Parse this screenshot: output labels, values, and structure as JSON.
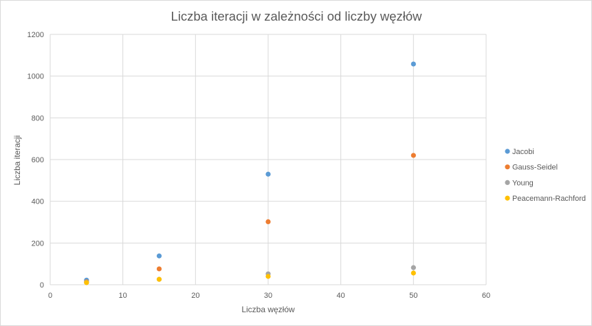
{
  "chart_data": {
    "type": "scatter",
    "title": "Liczba iteracji w zależności od liczby węzłów",
    "xlabel": "Liczba węzłów",
    "ylabel": "Liczba iteracji",
    "xlim": [
      0,
      60
    ],
    "ylim": [
      0,
      1200
    ],
    "xticks": [
      0,
      10,
      20,
      30,
      40,
      50,
      60
    ],
    "yticks": [
      0,
      200,
      400,
      600,
      800,
      1000,
      1200
    ],
    "grid": true,
    "legend_position": "right",
    "series": [
      {
        "name": "Jacobi",
        "color": "#5b9bd5",
        "points": [
          [
            5,
            22
          ],
          [
            15,
            138
          ],
          [
            30,
            530
          ],
          [
            50,
            1058
          ]
        ]
      },
      {
        "name": "Gauss-Seidel",
        "color": "#ed7d31",
        "points": [
          [
            5,
            14
          ],
          [
            15,
            76
          ],
          [
            30,
            302
          ],
          [
            50,
            620
          ]
        ]
      },
      {
        "name": "Young",
        "color": "#a5a5a5",
        "points": [
          [
            5,
            12
          ],
          [
            15,
            26
          ],
          [
            30,
            52
          ],
          [
            50,
            82
          ]
        ]
      },
      {
        "name": "Peacemann-Rachford",
        "color": "#ffc000",
        "points": [
          [
            5,
            10
          ],
          [
            15,
            26
          ],
          [
            30,
            40
          ],
          [
            50,
            56
          ]
        ]
      }
    ]
  }
}
